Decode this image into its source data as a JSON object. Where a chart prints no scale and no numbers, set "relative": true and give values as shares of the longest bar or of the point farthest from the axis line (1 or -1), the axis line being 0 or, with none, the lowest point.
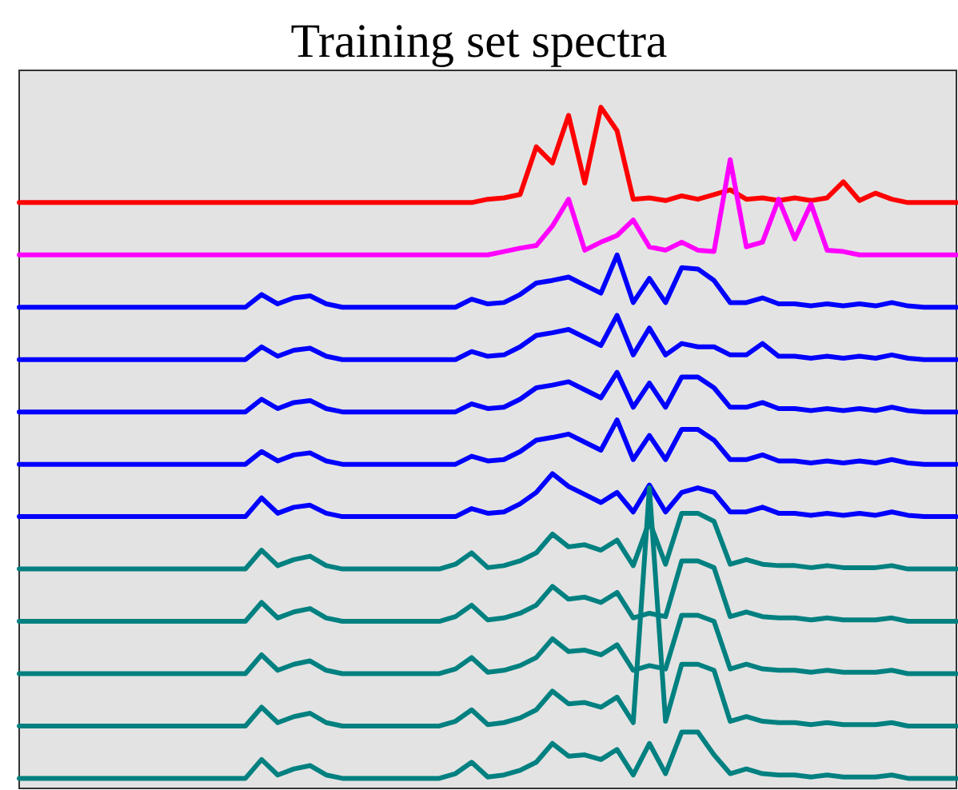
{
  "chart_data": {
    "type": "line",
    "title": "Training set spectra",
    "relative": true,
    "tick_labels": false,
    "marker": "none",
    "line_style": "solid",
    "categories": [
      null,
      null,
      null,
      null,
      null,
      null,
      null,
      null,
      null,
      null,
      null,
      null,
      null,
      null,
      null,
      null,
      null,
      null,
      null,
      null,
      null,
      null,
      null,
      null,
      null,
      null,
      null,
      null,
      null,
      null,
      null,
      null,
      null,
      null,
      null,
      null,
      null,
      null,
      null,
      null,
      null,
      null,
      null,
      null,
      null,
      null,
      null,
      null,
      null,
      null,
      null,
      null,
      null,
      null,
      null,
      null,
      null,
      null,
      null
    ],
    "series": [
      {
        "color": "#ff0000",
        "values": [
          0.858,
          0.858,
          0.858,
          0.858,
          0.858,
          0.858,
          0.858,
          0.858,
          0.858,
          0.858,
          0.858,
          0.858,
          0.858,
          0.858,
          0.858,
          0.858,
          0.858,
          0.858,
          0.858,
          0.858,
          0.858,
          0.858,
          0.858,
          0.858,
          0.858,
          0.858,
          0.858,
          0.858,
          0.858,
          0.863,
          0.865,
          0.87,
          0.941,
          0.917,
          0.988,
          0.887,
          1,
          0.965,
          0.863,
          0.865,
          0.861,
          0.868,
          0.863,
          0.87,
          0.877,
          0.863,
          0.865,
          0.861,
          0.865,
          0.861,
          0.865,
          0.889,
          0.861,
          0.872,
          0.863,
          0.858,
          0.858,
          0.858,
          0.858
        ]
      },
      {
        "color": "#ff00ff",
        "values": [
          0.78,
          0.78,
          0.78,
          0.78,
          0.78,
          0.78,
          0.78,
          0.78,
          0.78,
          0.78,
          0.78,
          0.78,
          0.78,
          0.78,
          0.78,
          0.78,
          0.78,
          0.78,
          0.78,
          0.78,
          0.78,
          0.78,
          0.78,
          0.78,
          0.78,
          0.78,
          0.78,
          0.78,
          0.78,
          0.78,
          0.785,
          0.79,
          0.794,
          0.823,
          0.863,
          0.787,
          0.799,
          0.809,
          0.832,
          0.792,
          0.787,
          0.799,
          0.787,
          0.785,
          0.922,
          0.792,
          0.799,
          0.863,
          0.804,
          0.856,
          0.787,
          0.785,
          0.78,
          0.78,
          0.78,
          0.78,
          0.78,
          0.78,
          0.78
        ]
      },
      {
        "color": "#0000ff",
        "values": [
          0.702,
          0.702,
          0.702,
          0.702,
          0.702,
          0.702,
          0.702,
          0.702,
          0.702,
          0.702,
          0.702,
          0.702,
          0.702,
          0.702,
          0.702,
          0.721,
          0.707,
          0.716,
          0.719,
          0.707,
          0.702,
          0.702,
          0.702,
          0.702,
          0.702,
          0.702,
          0.702,
          0.702,
          0.714,
          0.707,
          0.709,
          0.721,
          0.738,
          0.742,
          0.747,
          0.735,
          0.723,
          0.78,
          0.709,
          0.745,
          0.709,
          0.761,
          0.759,
          0.742,
          0.709,
          0.709,
          0.716,
          0.707,
          0.707,
          0.704,
          0.707,
          0.704,
          0.707,
          0.704,
          0.709,
          0.704,
          0.702,
          0.702,
          0.702
        ]
      },
      {
        "color": "#0000ff",
        "values": [
          0.624,
          0.624,
          0.624,
          0.624,
          0.624,
          0.624,
          0.624,
          0.624,
          0.624,
          0.624,
          0.624,
          0.624,
          0.624,
          0.624,
          0.624,
          0.643,
          0.629,
          0.638,
          0.641,
          0.629,
          0.624,
          0.624,
          0.624,
          0.624,
          0.624,
          0.624,
          0.624,
          0.624,
          0.636,
          0.629,
          0.631,
          0.643,
          0.66,
          0.664,
          0.669,
          0.657,
          0.645,
          0.69,
          0.631,
          0.671,
          0.631,
          0.648,
          0.643,
          0.643,
          0.631,
          0.631,
          0.648,
          0.629,
          0.629,
          0.626,
          0.629,
          0.626,
          0.629,
          0.626,
          0.631,
          0.626,
          0.624,
          0.624,
          0.624
        ]
      },
      {
        "color": "#0000ff",
        "values": [
          0.546,
          0.546,
          0.546,
          0.546,
          0.546,
          0.546,
          0.546,
          0.546,
          0.546,
          0.546,
          0.546,
          0.546,
          0.546,
          0.546,
          0.546,
          0.565,
          0.551,
          0.56,
          0.563,
          0.551,
          0.546,
          0.546,
          0.546,
          0.546,
          0.546,
          0.546,
          0.546,
          0.546,
          0.558,
          0.551,
          0.553,
          0.565,
          0.582,
          0.586,
          0.591,
          0.579,
          0.567,
          0.605,
          0.553,
          0.589,
          0.553,
          0.598,
          0.598,
          0.582,
          0.553,
          0.553,
          0.56,
          0.551,
          0.551,
          0.548,
          0.551,
          0.548,
          0.551,
          0.548,
          0.553,
          0.548,
          0.546,
          0.546,
          0.546
        ]
      },
      {
        "color": "#0000ff",
        "values": [
          0.468,
          0.468,
          0.468,
          0.468,
          0.468,
          0.468,
          0.468,
          0.468,
          0.468,
          0.468,
          0.468,
          0.468,
          0.468,
          0.468,
          0.468,
          0.487,
          0.473,
          0.482,
          0.485,
          0.473,
          0.468,
          0.468,
          0.468,
          0.468,
          0.468,
          0.468,
          0.468,
          0.468,
          0.48,
          0.473,
          0.475,
          0.487,
          0.504,
          0.508,
          0.513,
          0.501,
          0.489,
          0.534,
          0.475,
          0.511,
          0.475,
          0.52,
          0.52,
          0.504,
          0.475,
          0.475,
          0.482,
          0.473,
          0.473,
          0.47,
          0.473,
          0.47,
          0.473,
          0.47,
          0.475,
          0.47,
          0.468,
          0.468,
          0.468
        ]
      },
      {
        "color": "#0000ff",
        "values": [
          0.39,
          0.39,
          0.39,
          0.39,
          0.39,
          0.39,
          0.39,
          0.39,
          0.39,
          0.39,
          0.39,
          0.39,
          0.39,
          0.39,
          0.39,
          0.418,
          0.395,
          0.404,
          0.407,
          0.395,
          0.39,
          0.39,
          0.39,
          0.39,
          0.39,
          0.39,
          0.39,
          0.39,
          0.402,
          0.395,
          0.397,
          0.409,
          0.426,
          0.454,
          0.435,
          0.423,
          0.411,
          0.426,
          0.397,
          0.437,
          0.397,
          0.426,
          0.433,
          0.426,
          0.397,
          0.397,
          0.404,
          0.395,
          0.395,
          0.392,
          0.395,
          0.392,
          0.395,
          0.392,
          0.397,
          0.392,
          0.39,
          0.39,
          0.39
        ]
      },
      {
        "color": "#008080",
        "values": [
          0.312,
          0.312,
          0.312,
          0.312,
          0.312,
          0.312,
          0.312,
          0.312,
          0.312,
          0.312,
          0.312,
          0.312,
          0.312,
          0.312,
          0.312,
          0.34,
          0.317,
          0.326,
          0.331,
          0.317,
          0.312,
          0.312,
          0.312,
          0.312,
          0.312,
          0.312,
          0.312,
          0.319,
          0.336,
          0.314,
          0.317,
          0.324,
          0.336,
          0.364,
          0.345,
          0.348,
          0.34,
          0.355,
          0.317,
          0.383,
          0.319,
          0.395,
          0.395,
          0.383,
          0.319,
          0.326,
          0.319,
          0.317,
          0.317,
          0.314,
          0.317,
          0.314,
          0.314,
          0.314,
          0.317,
          0.312,
          0.312,
          0.312,
          0.312
        ]
      },
      {
        "color": "#008080",
        "values": [
          0.234,
          0.234,
          0.234,
          0.234,
          0.234,
          0.234,
          0.234,
          0.234,
          0.234,
          0.234,
          0.234,
          0.234,
          0.234,
          0.234,
          0.234,
          0.262,
          0.239,
          0.248,
          0.253,
          0.239,
          0.234,
          0.234,
          0.234,
          0.234,
          0.234,
          0.234,
          0.234,
          0.241,
          0.258,
          0.236,
          0.239,
          0.246,
          0.258,
          0.286,
          0.267,
          0.27,
          0.262,
          0.277,
          0.239,
          0.246,
          0.241,
          0.324,
          0.324,
          0.314,
          0.241,
          0.248,
          0.241,
          0.239,
          0.239,
          0.236,
          0.239,
          0.236,
          0.236,
          0.236,
          0.239,
          0.234,
          0.234,
          0.234,
          0.234
        ]
      },
      {
        "color": "#008080",
        "values": [
          0.156,
          0.156,
          0.156,
          0.156,
          0.156,
          0.156,
          0.156,
          0.156,
          0.156,
          0.156,
          0.156,
          0.156,
          0.156,
          0.156,
          0.156,
          0.184,
          0.161,
          0.17,
          0.175,
          0.161,
          0.156,
          0.156,
          0.156,
          0.156,
          0.156,
          0.156,
          0.156,
          0.163,
          0.18,
          0.158,
          0.161,
          0.168,
          0.18,
          0.208,
          0.189,
          0.191,
          0.184,
          0.199,
          0.161,
          0.168,
          0.163,
          0.243,
          0.243,
          0.234,
          0.163,
          0.17,
          0.163,
          0.161,
          0.161,
          0.158,
          0.161,
          0.158,
          0.158,
          0.158,
          0.161,
          0.156,
          0.156,
          0.156,
          0.156
        ]
      },
      {
        "color": "#008080",
        "values": [
          0.078,
          0.078,
          0.078,
          0.078,
          0.078,
          0.078,
          0.078,
          0.078,
          0.078,
          0.078,
          0.078,
          0.078,
          0.078,
          0.078,
          0.078,
          0.106,
          0.083,
          0.092,
          0.097,
          0.083,
          0.078,
          0.078,
          0.078,
          0.078,
          0.078,
          0.078,
          0.078,
          0.085,
          0.102,
          0.08,
          0.083,
          0.09,
          0.102,
          0.13,
          0.111,
          0.113,
          0.106,
          0.121,
          0.083,
          0.433,
          0.085,
          0.17,
          0.17,
          0.161,
          0.085,
          0.092,
          0.085,
          0.083,
          0.083,
          0.08,
          0.083,
          0.08,
          0.08,
          0.08,
          0.083,
          0.078,
          0.078,
          0.078,
          0.078
        ]
      },
      {
        "color": "#008080",
        "values": [
          0,
          0,
          0,
          0,
          0,
          0,
          0,
          0,
          0,
          0,
          0,
          0,
          0,
          0,
          0,
          0.028,
          0.005,
          0.014,
          0.019,
          0.005,
          0,
          0,
          0,
          0,
          0,
          0,
          0,
          0.007,
          0.024,
          0.002,
          0.005,
          0.012,
          0.024,
          0.052,
          0.033,
          0.035,
          0.028,
          0.043,
          0.005,
          0.052,
          0.007,
          0.069,
          0.069,
          0.035,
          0.007,
          0.014,
          0.007,
          0.005,
          0.005,
          0.002,
          0.005,
          0.002,
          0.002,
          0.002,
          0.005,
          0,
          0,
          0,
          0
        ]
      }
    ]
  }
}
